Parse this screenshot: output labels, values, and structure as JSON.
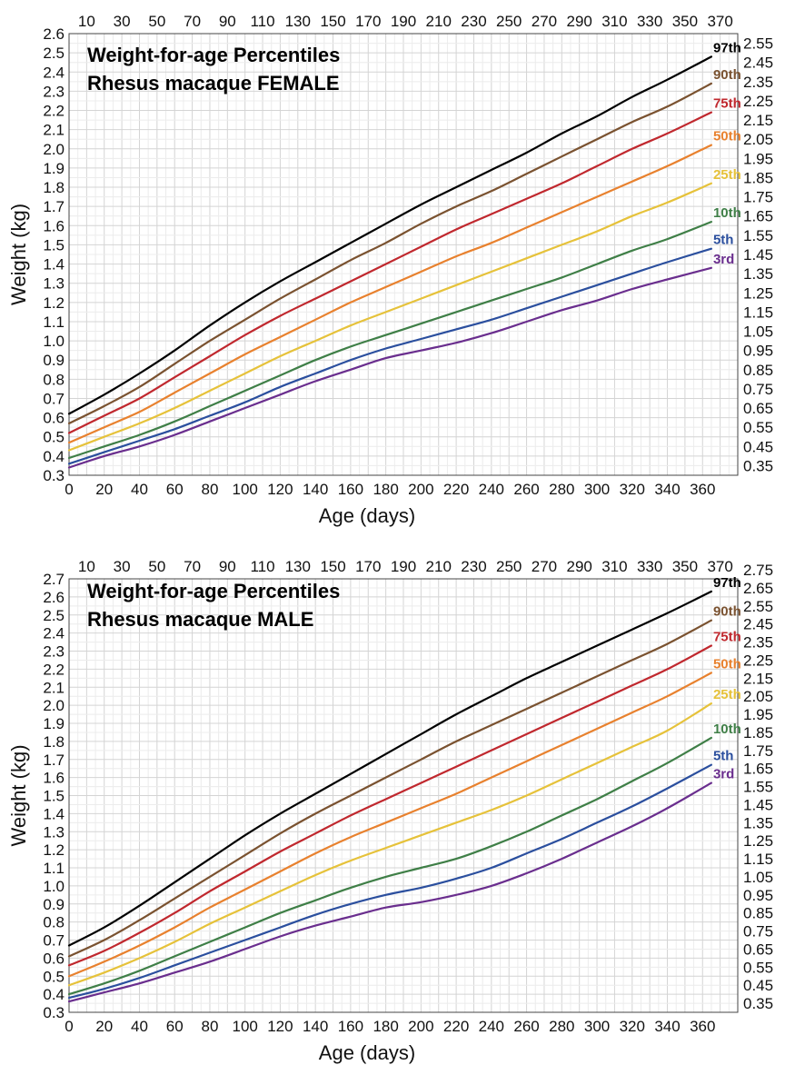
{
  "chart_data": [
    {
      "type": "line",
      "title": "Weight-for-age Percentiles",
      "subtitle": "Rhesus macaque FEMALE",
      "xlabel": "Age (days)",
      "ylabel": "Weight (kg)",
      "xlim": [
        0,
        380
      ],
      "ylim": [
        0.3,
        2.6
      ],
      "x_ticks_bottom": [
        0,
        20,
        40,
        60,
        80,
        100,
        120,
        140,
        160,
        180,
        200,
        220,
        240,
        260,
        280,
        300,
        320,
        340,
        360
      ],
      "x_ticks_top": [
        10,
        30,
        50,
        70,
        90,
        110,
        130,
        150,
        170,
        190,
        210,
        230,
        250,
        270,
        290,
        310,
        330,
        350,
        370
      ],
      "y_ticks_left": [
        "0.3",
        "0.4",
        "0.5",
        "0.6",
        "0.7",
        "0.8",
        "0.9",
        "1.0",
        "1.1",
        "1.2",
        "1.3",
        "1.4",
        "1.5",
        "1.6",
        "1.7",
        "1.8",
        "1.9",
        "2.0",
        "2.1",
        "2.2",
        "2.3",
        "2.4",
        "2.5",
        "2.6"
      ],
      "y_ticks_right": [
        "0.35",
        "0.45",
        "0.55",
        "0.65",
        "0.75",
        "0.85",
        "0.95",
        "1.05",
        "1.15",
        "1.25",
        "1.35",
        "1.45",
        "1.55",
        "1.65",
        "1.75",
        "1.85",
        "1.95",
        "2.05",
        "2.15",
        "2.25",
        "2.35",
        "2.45",
        "2.55"
      ],
      "grid": true,
      "x": [
        0,
        20,
        40,
        60,
        80,
        100,
        120,
        140,
        160,
        180,
        200,
        220,
        240,
        260,
        280,
        300,
        320,
        340,
        365
      ],
      "series": [
        {
          "name": "97th",
          "color": "#000000",
          "values": [
            0.62,
            0.72,
            0.83,
            0.95,
            1.08,
            1.2,
            1.31,
            1.41,
            1.51,
            1.61,
            1.71,
            1.8,
            1.89,
            1.98,
            2.08,
            2.17,
            2.27,
            2.36,
            2.48
          ]
        },
        {
          "name": "90th",
          "color": "#7a5230",
          "values": [
            0.57,
            0.66,
            0.76,
            0.88,
            1.0,
            1.11,
            1.22,
            1.32,
            1.42,
            1.51,
            1.61,
            1.7,
            1.78,
            1.87,
            1.96,
            2.05,
            2.14,
            2.22,
            2.34
          ]
        },
        {
          "name": "75th",
          "color": "#c0282e",
          "values": [
            0.52,
            0.61,
            0.7,
            0.81,
            0.92,
            1.03,
            1.13,
            1.22,
            1.31,
            1.4,
            1.49,
            1.58,
            1.66,
            1.74,
            1.82,
            1.91,
            2.0,
            2.08,
            2.19
          ]
        },
        {
          "name": "50th",
          "color": "#e8812e",
          "values": [
            0.47,
            0.55,
            0.63,
            0.73,
            0.83,
            0.93,
            1.02,
            1.11,
            1.2,
            1.28,
            1.36,
            1.44,
            1.51,
            1.59,
            1.67,
            1.75,
            1.83,
            1.91,
            2.02
          ]
        },
        {
          "name": "25th",
          "color": "#e6c23a",
          "values": [
            0.43,
            0.5,
            0.57,
            0.65,
            0.74,
            0.83,
            0.92,
            1.0,
            1.08,
            1.15,
            1.22,
            1.29,
            1.36,
            1.43,
            1.5,
            1.57,
            1.65,
            1.72,
            1.82
          ]
        },
        {
          "name": "10th",
          "color": "#3f7f47",
          "values": [
            0.39,
            0.45,
            0.51,
            0.58,
            0.66,
            0.74,
            0.82,
            0.9,
            0.97,
            1.03,
            1.09,
            1.15,
            1.21,
            1.27,
            1.33,
            1.4,
            1.47,
            1.53,
            1.62
          ]
        },
        {
          "name": "5th",
          "color": "#2b4f9e",
          "values": [
            0.36,
            0.42,
            0.48,
            0.54,
            0.61,
            0.68,
            0.76,
            0.83,
            0.9,
            0.96,
            1.01,
            1.06,
            1.11,
            1.17,
            1.23,
            1.29,
            1.35,
            1.41,
            1.48
          ]
        },
        {
          "name": "3rd",
          "color": "#6a2e8e",
          "values": [
            0.34,
            0.4,
            0.45,
            0.51,
            0.58,
            0.65,
            0.72,
            0.79,
            0.85,
            0.91,
            0.95,
            0.99,
            1.04,
            1.1,
            1.16,
            1.21,
            1.27,
            1.32,
            1.38
          ]
        }
      ]
    },
    {
      "type": "line",
      "title": "Weight-for-age Percentiles",
      "subtitle": "Rhesus macaque MALE",
      "xlabel": "Age (days)",
      "ylabel": "Weight (kg)",
      "xlim": [
        0,
        380
      ],
      "ylim": [
        0.3,
        2.7
      ],
      "x_ticks_bottom": [
        0,
        20,
        40,
        60,
        80,
        100,
        120,
        140,
        160,
        180,
        200,
        220,
        240,
        260,
        280,
        300,
        320,
        340,
        360
      ],
      "x_ticks_top": [
        10,
        30,
        50,
        70,
        90,
        110,
        130,
        150,
        170,
        190,
        210,
        230,
        250,
        270,
        290,
        310,
        330,
        350,
        370
      ],
      "y_ticks_left": [
        "0.3",
        "0.4",
        "0.5",
        "0.6",
        "0.7",
        "0.8",
        "0.9",
        "1.0",
        "1.1",
        "1.2",
        "1.3",
        "1.4",
        "1.5",
        "1.6",
        "1.7",
        "1.8",
        "1.9",
        "2.0",
        "2.1",
        "2.2",
        "2.3",
        "2.4",
        "2.5",
        "2.6",
        "2.7"
      ],
      "y_ticks_right": [
        "0.35",
        "0.45",
        "0.55",
        "0.65",
        "0.75",
        "0.85",
        "0.95",
        "1.05",
        "1.15",
        "1.25",
        "1.35",
        "1.45",
        "1.55",
        "1.65",
        "1.75",
        "1.85",
        "1.95",
        "2.05",
        "2.15",
        "2.25",
        "2.35",
        "2.45",
        "2.55",
        "2.65",
        "2.75"
      ],
      "grid": true,
      "x": [
        0,
        20,
        40,
        60,
        80,
        100,
        120,
        140,
        160,
        180,
        200,
        220,
        240,
        260,
        280,
        300,
        320,
        340,
        365
      ],
      "series": [
        {
          "name": "97th",
          "color": "#000000",
          "values": [
            0.67,
            0.77,
            0.89,
            1.02,
            1.15,
            1.28,
            1.4,
            1.51,
            1.62,
            1.73,
            1.84,
            1.95,
            2.05,
            2.15,
            2.24,
            2.33,
            2.42,
            2.51,
            2.63
          ]
        },
        {
          "name": "90th",
          "color": "#7a5230",
          "values": [
            0.61,
            0.7,
            0.81,
            0.93,
            1.05,
            1.17,
            1.29,
            1.4,
            1.5,
            1.6,
            1.7,
            1.8,
            1.89,
            1.98,
            2.07,
            2.16,
            2.25,
            2.34,
            2.47
          ]
        },
        {
          "name": "75th",
          "color": "#c0282e",
          "values": [
            0.56,
            0.64,
            0.74,
            0.85,
            0.97,
            1.08,
            1.19,
            1.29,
            1.39,
            1.48,
            1.57,
            1.66,
            1.75,
            1.84,
            1.93,
            2.02,
            2.11,
            2.2,
            2.33
          ]
        },
        {
          "name": "50th",
          "color": "#e8812e",
          "values": [
            0.5,
            0.58,
            0.67,
            0.77,
            0.88,
            0.98,
            1.08,
            1.18,
            1.27,
            1.35,
            1.43,
            1.51,
            1.6,
            1.69,
            1.78,
            1.87,
            1.96,
            2.05,
            2.18
          ]
        },
        {
          "name": "25th",
          "color": "#e6c23a",
          "values": [
            0.45,
            0.52,
            0.6,
            0.69,
            0.79,
            0.88,
            0.97,
            1.06,
            1.14,
            1.21,
            1.28,
            1.35,
            1.42,
            1.5,
            1.59,
            1.68,
            1.77,
            1.86,
            2.01
          ]
        },
        {
          "name": "10th",
          "color": "#3f7f47",
          "values": [
            0.4,
            0.46,
            0.53,
            0.61,
            0.69,
            0.77,
            0.85,
            0.92,
            0.99,
            1.05,
            1.1,
            1.15,
            1.22,
            1.3,
            1.39,
            1.48,
            1.58,
            1.68,
            1.82
          ]
        },
        {
          "name": "5th",
          "color": "#2b4f9e",
          "values": [
            0.38,
            0.43,
            0.49,
            0.56,
            0.63,
            0.7,
            0.77,
            0.84,
            0.9,
            0.95,
            0.99,
            1.04,
            1.1,
            1.18,
            1.26,
            1.35,
            1.44,
            1.54,
            1.67
          ]
        },
        {
          "name": "3rd",
          "color": "#6a2e8e",
          "values": [
            0.36,
            0.41,
            0.46,
            0.52,
            0.58,
            0.65,
            0.72,
            0.78,
            0.83,
            0.88,
            0.91,
            0.95,
            1.0,
            1.07,
            1.15,
            1.24,
            1.33,
            1.43,
            1.57
          ]
        }
      ]
    }
  ]
}
